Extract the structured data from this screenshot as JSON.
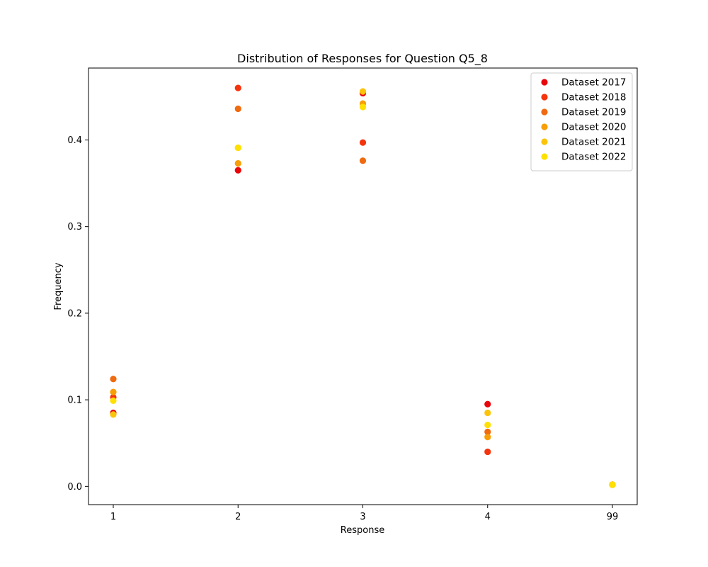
{
  "chart_data": {
    "type": "scatter",
    "title": "Distribution of Responses for Question Q5_8",
    "xlabel": "Response",
    "ylabel": "Frequency",
    "categories": [
      "1",
      "2",
      "3",
      "4",
      "99"
    ],
    "yticks": [
      "0.0",
      "0.1",
      "0.2",
      "0.3",
      "0.4"
    ],
    "ylim": [
      -0.021,
      0.483
    ],
    "grid": false,
    "legend_position": "top-right",
    "series": [
      {
        "name": "Dataset 2017",
        "color": "#e8060a",
        "values": [
          0.085,
          0.365,
          0.454,
          0.095,
          0.002
        ]
      },
      {
        "name": "Dataset 2018",
        "color": "#f5330d",
        "values": [
          0.103,
          0.46,
          0.397,
          0.04,
          0.002
        ]
      },
      {
        "name": "Dataset 2019",
        "color": "#f06a0f",
        "values": [
          0.124,
          0.436,
          0.376,
          0.063,
          0.002
        ]
      },
      {
        "name": "Dataset 2020",
        "color": "#f89e06",
        "values": [
          0.109,
          0.373,
          0.442,
          0.057,
          0.002
        ]
      },
      {
        "name": "Dataset 2021",
        "color": "#fbc40a",
        "values": [
          0.083,
          0.391,
          0.456,
          0.085,
          0.002
        ]
      },
      {
        "name": "Dataset 2022",
        "color": "#ffe000",
        "values": [
          0.099,
          0.391,
          0.438,
          0.071,
          0.002
        ]
      }
    ]
  }
}
